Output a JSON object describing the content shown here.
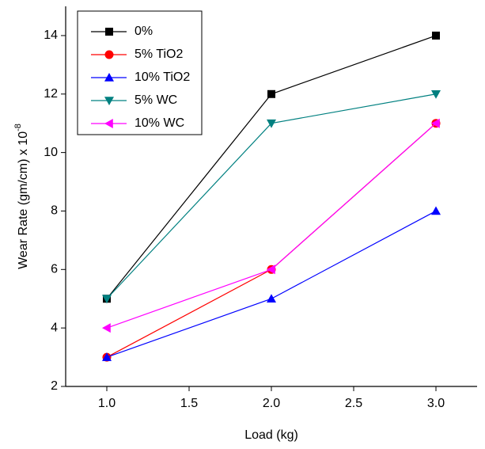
{
  "chart_data": {
    "type": "line",
    "x_label": "Load (kg)",
    "y_label": "Wear Rate (gm/cm) x 10",
    "y_label_exponent": "-8",
    "x": [
      1,
      2,
      3
    ],
    "series": [
      {
        "name": "0%",
        "color": "#000000",
        "marker": "square",
        "values": [
          5,
          12,
          14
        ]
      },
      {
        "name": "5% TiO2",
        "color": "#ff0000",
        "marker": "circle",
        "values": [
          3,
          6,
          11
        ]
      },
      {
        "name": "10% TiO2",
        "color": "#0000ff",
        "marker": "triangle-up",
        "values": [
          3,
          5,
          8
        ]
      },
      {
        "name": "5% WC",
        "color": "#008080",
        "marker": "triangle-down",
        "values": [
          5,
          11,
          12
        ]
      },
      {
        "name": "10% WC",
        "color": "#ff00ff",
        "marker": "triangle-left",
        "values": [
          4,
          6,
          11
        ]
      }
    ],
    "xlim": [
      0.75,
      3.25
    ],
    "ylim": [
      2,
      15
    ],
    "xticks": [
      {
        "value": 1,
        "label": "1.0"
      },
      1.5,
      {
        "value": 2,
        "label": "2.0"
      },
      2.5,
      {
        "value": 3,
        "label": "3.0"
      }
    ],
    "yticks": [
      2,
      4,
      6,
      8,
      10,
      12,
      14
    ],
    "legend": "upper-left"
  }
}
